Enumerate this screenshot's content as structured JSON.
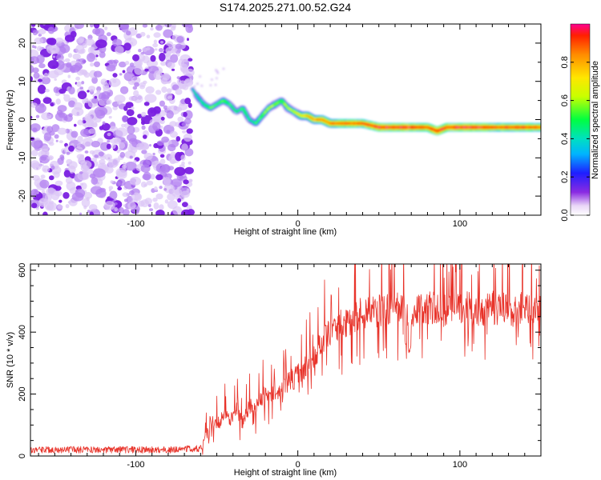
{
  "title": "S174.2025.271.00.52.G24",
  "chart_data": [
    {
      "type": "heatmap",
      "title": "S174.2025.271.00.52.G24",
      "xlabel": "Height of straight line (km)",
      "ylabel": "Frequency (Hz)",
      "xlim": [
        -165,
        150
      ],
      "ylim": [
        -25,
        25
      ],
      "xticks": [
        -100,
        0,
        100
      ],
      "yticks": [
        -20,
        -10,
        0,
        10,
        20
      ],
      "noise_region_x": [
        -165,
        -66
      ],
      "ridge": {
        "x": [
          -65,
          -62,
          -58,
          -54,
          -50,
          -46,
          -42,
          -38,
          -34,
          -30,
          -26,
          -22,
          -18,
          -14,
          -10,
          -6,
          -2,
          2,
          6,
          10,
          15,
          20,
          30,
          40,
          50,
          60,
          70,
          80,
          86,
          92,
          100,
          110,
          120,
          130,
          140,
          150
        ],
        "freq": [
          8,
          6,
          4,
          3,
          4,
          5,
          4,
          2,
          3,
          0,
          -1,
          1,
          3,
          4,
          5,
          3,
          2,
          1,
          1,
          0,
          0,
          -1,
          -1,
          -1,
          -2,
          -2,
          -2,
          -2,
          -3,
          -2,
          -2,
          -2,
          -2,
          -2,
          -2,
          -2
        ],
        "amplitude": [
          0.35,
          0.45,
          0.5,
          0.55,
          0.5,
          0.55,
          0.5,
          0.45,
          0.5,
          0.45,
          0.5,
          0.55,
          0.6,
          0.6,
          0.55,
          0.6,
          0.65,
          0.7,
          0.75,
          0.8,
          0.85,
          0.85,
          0.9,
          0.9,
          0.95,
          0.95,
          0.95,
          0.9,
          0.95,
          0.9,
          0.95,
          0.95,
          0.9,
          0.9,
          0.9,
          0.9
        ]
      },
      "colorbar": {
        "label": "Normalized spectral amplitude",
        "range": [
          0,
          1
        ],
        "ticks": [
          "0.0",
          "0.2",
          "0.4",
          "0.6",
          "0.8"
        ],
        "tick_values": [
          0,
          0.2,
          0.4,
          0.6,
          0.8
        ]
      }
    },
    {
      "type": "line",
      "xlabel": "Height of straight line (km)",
      "ylabel": "SNR (10 * v/v)",
      "xlim": [
        -165,
        150
      ],
      "ylim": [
        0,
        620
      ],
      "xticks": [
        -100,
        0,
        100
      ],
      "yticks": [
        0,
        200,
        400,
        600
      ],
      "color": "#e8332a",
      "series": [
        {
          "name": "SNR",
          "x": [
            -165,
            -140,
            -110,
            -80,
            -60,
            -57,
            -54,
            -50,
            -46,
            -42,
            -38,
            -34,
            -30,
            -26,
            -22,
            -18,
            -14,
            -10,
            -6,
            -2,
            2,
            6,
            10,
            14,
            18,
            22,
            26,
            30,
            35,
            40,
            50,
            60,
            70,
            80,
            90,
            100,
            110,
            120,
            130,
            140,
            150
          ],
          "y": [
            20,
            20,
            20,
            20,
            25,
            60,
            110,
            100,
            130,
            120,
            150,
            110,
            160,
            150,
            190,
            200,
            210,
            220,
            240,
            250,
            270,
            300,
            320,
            360,
            390,
            410,
            420,
            430,
            450,
            460,
            470,
            480,
            470,
            480,
            470,
            480,
            470,
            480,
            470,
            480,
            470
          ]
        }
      ]
    }
  ]
}
